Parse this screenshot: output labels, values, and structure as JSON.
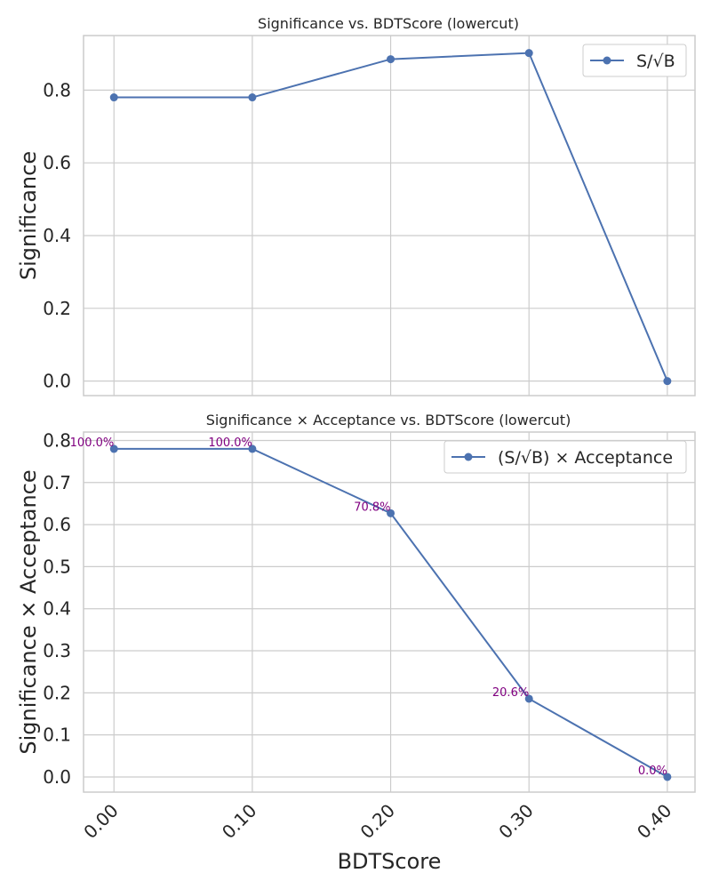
{
  "chart_data": [
    {
      "type": "line",
      "title": "Significance vs. BDTScore (lowercut)",
      "xlabel": "",
      "ylabel": "Significance",
      "x": [
        0.0,
        0.1,
        0.2,
        0.3,
        0.4
      ],
      "series": [
        {
          "name": "S/√B",
          "values": [
            0.78,
            0.78,
            0.885,
            0.902,
            0.0
          ]
        }
      ],
      "yticks": [
        "0.0",
        "0.2",
        "0.4",
        "0.6",
        "0.8"
      ],
      "ylim": [
        -0.04,
        0.95
      ],
      "xlim": [
        -0.022,
        0.42
      ],
      "grid": true,
      "legend": "top-right",
      "colors": {
        "line": "#4c72b0",
        "grid": "#cccccc"
      }
    },
    {
      "type": "line",
      "title": "Significance × Acceptance vs. BDTScore (lowercut)",
      "xlabel": "BDTScore",
      "ylabel": "Significance × Acceptance",
      "x": [
        0.0,
        0.1,
        0.2,
        0.3,
        0.4
      ],
      "xticks": [
        "0.00",
        "0.10",
        "0.20",
        "0.30",
        "0.40"
      ],
      "series": [
        {
          "name": "(S/√B) × Acceptance",
          "values": [
            0.78,
            0.78,
            0.627,
            0.186,
            0.0
          ]
        }
      ],
      "annotations": [
        "100.0%",
        "100.0%",
        "70.8%",
        "20.6%",
        "0.0%"
      ],
      "yticks": [
        "0.0",
        "0.1",
        "0.2",
        "0.3",
        "0.4",
        "0.5",
        "0.6",
        "0.7",
        "0.8"
      ],
      "ylim": [
        -0.036,
        0.82
      ],
      "xlim": [
        -0.022,
        0.42
      ],
      "grid": true,
      "legend": "top-right",
      "colors": {
        "line": "#4c72b0",
        "annotation": "#800080",
        "grid": "#cccccc"
      }
    }
  ]
}
